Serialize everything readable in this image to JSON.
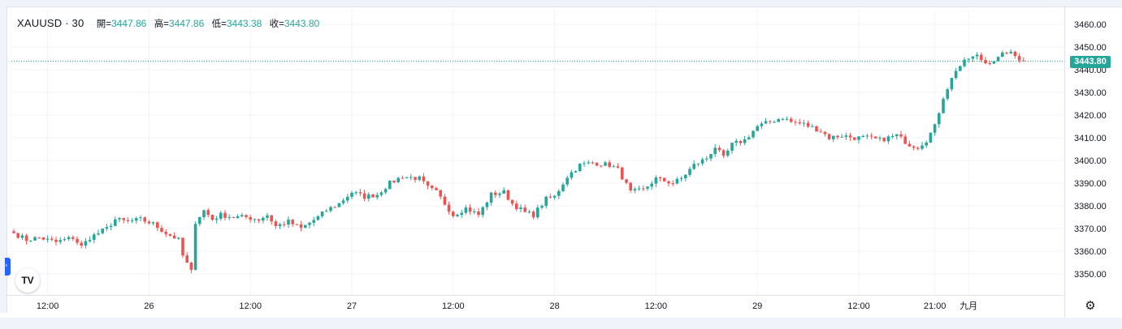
{
  "window": {
    "symbol": "XAUUSD · 30"
  },
  "legend": {
    "open_label": "開=",
    "open": "3447.86",
    "high_label": "高=",
    "high": "3447.86",
    "low_label": "低=",
    "low": "3443.38",
    "close_label": "收=",
    "close": "3443.80"
  },
  "last_price_label": "3443.80",
  "logo_text": "TV",
  "colors": {
    "up": "#26a69a",
    "down": "#ef5350",
    "grid": "#f0f3fa",
    "last_price_line": "#26a69a"
  },
  "icons": {
    "logo": "tradingview-logo-icon",
    "settings": "gear-icon",
    "collapse": "chevron-right-icon"
  },
  "chart_data": {
    "type": "candlestick",
    "title": "XAUUSD · 30",
    "interval": "30",
    "ylim": [
      3345,
      3465
    ],
    "y_ticks": [
      3350,
      3360,
      3370,
      3380,
      3390,
      3400,
      3410,
      3420,
      3430,
      3440,
      3450,
      3460
    ],
    "x_tick_labels": [
      {
        "label": "12:00",
        "index": 8
      },
      {
        "label": "26",
        "index": 32
      },
      {
        "label": "12:00",
        "index": 56
      },
      {
        "label": "27",
        "index": 80
      },
      {
        "label": "12:00",
        "index": 104
      },
      {
        "label": "28",
        "index": 128
      },
      {
        "label": "12:00",
        "index": 152
      },
      {
        "label": "29",
        "index": 176
      },
      {
        "label": "12:00",
        "index": 200
      },
      {
        "label": "21:00",
        "index": 218
      },
      {
        "label": "九月",
        "index": 226
      }
    ],
    "last_price": 3443.8,
    "close_path": [
      [
        0,
        3368
      ],
      [
        3,
        3365
      ],
      [
        6,
        3366
      ],
      [
        10,
        3364
      ],
      [
        14,
        3366
      ],
      [
        16,
        3362
      ],
      [
        18,
        3366
      ],
      [
        22,
        3370
      ],
      [
        24,
        3374
      ],
      [
        27,
        3373
      ],
      [
        30,
        3374
      ],
      [
        33,
        3372
      ],
      [
        36,
        3368
      ],
      [
        39,
        3365
      ],
      [
        40,
        3358
      ],
      [
        42,
        3351
      ],
      [
        43,
        3373
      ],
      [
        45,
        3378
      ],
      [
        47,
        3374
      ],
      [
        49,
        3376
      ],
      [
        52,
        3375
      ],
      [
        55,
        3375
      ],
      [
        58,
        3374
      ],
      [
        60,
        3376
      ],
      [
        62,
        3371
      ],
      [
        65,
        3373
      ],
      [
        68,
        3370
      ],
      [
        72,
        3375
      ],
      [
        74,
        3378
      ],
      [
        77,
        3381
      ],
      [
        80,
        3386
      ],
      [
        83,
        3384
      ],
      [
        86,
        3385
      ],
      [
        89,
        3390
      ],
      [
        92,
        3393
      ],
      [
        96,
        3392
      ],
      [
        98,
        3388
      ],
      [
        100,
        3386
      ],
      [
        104,
        3376
      ],
      [
        107,
        3379
      ],
      [
        110,
        3376
      ],
      [
        113,
        3385
      ],
      [
        116,
        3386
      ],
      [
        118,
        3381
      ],
      [
        121,
        3377
      ],
      [
        123,
        3376
      ],
      [
        126,
        3383
      ],
      [
        128,
        3384
      ],
      [
        131,
        3393
      ],
      [
        134,
        3398
      ],
      [
        137,
        3399
      ],
      [
        141,
        3398
      ],
      [
        143,
        3396
      ],
      [
        146,
        3386
      ],
      [
        149,
        3387
      ],
      [
        152,
        3392
      ],
      [
        156,
        3390
      ],
      [
        158,
        3392
      ],
      [
        161,
        3398
      ],
      [
        164,
        3401
      ],
      [
        166,
        3406
      ],
      [
        168,
        3401
      ],
      [
        170,
        3407
      ],
      [
        173,
        3409
      ],
      [
        176,
        3415
      ],
      [
        179,
        3417
      ],
      [
        182,
        3419
      ],
      [
        184,
        3417
      ],
      [
        187,
        3416
      ],
      [
        191,
        3413
      ],
      [
        193,
        3410
      ],
      [
        196,
        3411
      ],
      [
        199,
        3410
      ],
      [
        202,
        3410
      ],
      [
        205,
        3409
      ],
      [
        209,
        3411
      ],
      [
        212,
        3407
      ],
      [
        214,
        3406
      ],
      [
        216,
        3409
      ],
      [
        218,
        3415
      ],
      [
        220,
        3428
      ],
      [
        223,
        3440
      ],
      [
        226,
        3445
      ],
      [
        228,
        3446
      ],
      [
        230,
        3443
      ],
      [
        233,
        3445
      ],
      [
        235,
        3448
      ],
      [
        237,
        3446
      ],
      [
        239,
        3443.8
      ]
    ]
  }
}
